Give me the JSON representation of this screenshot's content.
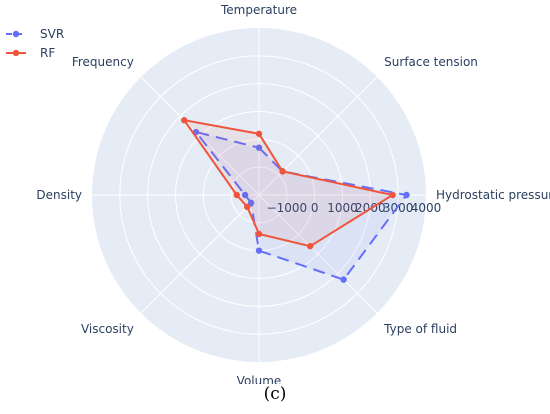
{
  "chart_data": {
    "type": "radar",
    "axes": [
      "Temperature",
      "Surface tension",
      "Hydrostatic pressure",
      "Type of fluid",
      "Volume",
      "Viscosity",
      "Density",
      "Frequency"
    ],
    "radial_ticks": [
      "−1000",
      "0",
      "1000",
      "2000",
      "3000",
      "4000"
    ],
    "radial_range": [
      -2000,
      4000
    ],
    "grid": true,
    "legend_position": "top-left",
    "series": [
      {
        "name": "SVR",
        "color": "#636efa",
        "dash": "dash",
        "values": [
          -300,
          -800,
          3300,
          2300,
          0,
          -1600,
          -1500,
          1200
        ]
      },
      {
        "name": "RF",
        "color": "#ef553b",
        "dash": "solid",
        "values": [
          200,
          -800,
          2800,
          600,
          -600,
          -1400,
          -1200,
          1800
        ]
      }
    ]
  },
  "caption": "(c)"
}
